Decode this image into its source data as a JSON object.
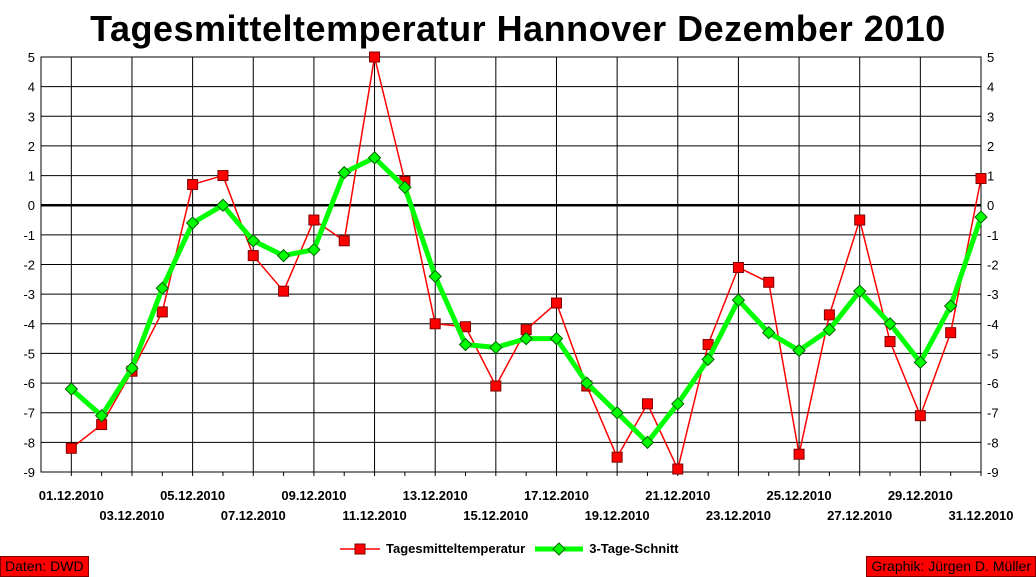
{
  "chart_data": {
    "type": "line",
    "title": "Tagesmitteltemperatur Hannover Dezember 2010",
    "ylim": [
      -9,
      5
    ],
    "y_ticks": [
      5,
      4,
      3,
      2,
      1,
      0,
      -1,
      -2,
      -3,
      -4,
      -5,
      -6,
      -7,
      -8,
      -9
    ],
    "grid": true,
    "legend_position": "bottom-center",
    "x": [
      "01.12.2010",
      "02.12.2010",
      "03.12.2010",
      "04.12.2010",
      "05.12.2010",
      "06.12.2010",
      "07.12.2010",
      "08.12.2010",
      "09.12.2010",
      "10.12.2010",
      "11.12.2010",
      "12.12.2010",
      "13.12.2010",
      "14.12.2010",
      "15.12.2010",
      "16.12.2010",
      "17.12.2010",
      "18.12.2010",
      "19.12.2010",
      "20.12.2010",
      "21.12.2010",
      "22.12.2010",
      "23.12.2010",
      "24.12.2010",
      "25.12.2010",
      "26.12.2010",
      "27.12.2010",
      "28.12.2010",
      "29.12.2010",
      "30.12.2010",
      "31.12.2010"
    ],
    "x_tick_labels_row1": [
      "01.12.2010",
      "05.12.2010",
      "09.12.2010",
      "13.12.2010",
      "17.12.2010",
      "21.12.2010",
      "25.12.2010",
      "29.12.2010"
    ],
    "x_tick_labels_row2": [
      "03.12.2010",
      "07.12.2010",
      "11.12.2010",
      "15.12.2010",
      "19.12.2010",
      "23.12.2010",
      "27.12.2010",
      "31.12.2010"
    ],
    "series": [
      {
        "name": "Tagesmitteltemperatur",
        "color": "#ff0000",
        "marker": "square",
        "values": [
          -8.2,
          -7.4,
          -5.6,
          -3.6,
          0.7,
          1.0,
          -1.7,
          -2.9,
          -0.5,
          -1.2,
          5.0,
          0.8,
          -4.0,
          -4.1,
          -6.1,
          -4.2,
          -3.3,
          -6.1,
          -8.5,
          -6.7,
          -8.9,
          -4.7,
          -2.1,
          -2.6,
          -8.4,
          -3.7,
          -0.5,
          -4.6,
          -7.1,
          -4.3,
          0.9
        ]
      },
      {
        "name": "3-Tage-Schnitt",
        "color": "#00ff00",
        "marker": "diamond",
        "values": [
          -6.2,
          -7.1,
          -5.5,
          -2.8,
          -0.6,
          0.0,
          -1.2,
          -1.7,
          -1.5,
          1.1,
          1.6,
          0.6,
          -2.4,
          -4.7,
          -4.8,
          -4.5,
          -4.5,
          -6.0,
          -7.0,
          -8.0,
          -6.7,
          -5.2,
          -3.2,
          -4.3,
          -4.9,
          -4.2,
          -2.9,
          -4.0,
          -5.3,
          -3.4,
          -0.4
        ]
      }
    ]
  },
  "credits": {
    "left": "Daten: DWD",
    "right": "Graphik: Jürgen D. Müller"
  }
}
